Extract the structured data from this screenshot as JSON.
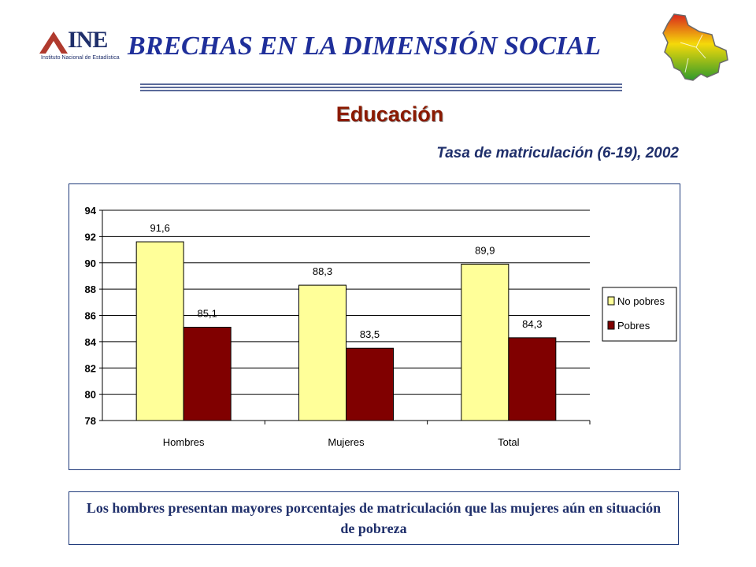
{
  "header": {
    "logo_text": "INE",
    "logo_subtext": "Instituto Nacional de Estadística",
    "title": "BRECHAS EN LA DIMENSIÓN SOCIAL"
  },
  "section": {
    "title": "Educación"
  },
  "chart_data": {
    "type": "bar",
    "title": "Tasa de matriculación (6-19), 2002",
    "xlabel": "",
    "ylabel": "",
    "categories": [
      "Hombres",
      "Mujeres",
      "Total"
    ],
    "series": [
      {
        "name": "No pobres",
        "values": [
          91.6,
          88.3,
          89.9
        ],
        "labels": [
          "91,6",
          "88,3",
          "89,9"
        ],
        "color": "#ffff99"
      },
      {
        "name": "Pobres",
        "values": [
          85.1,
          83.5,
          84.3
        ],
        "labels": [
          "85,1",
          "83,5",
          "84,3"
        ],
        "color": "#800000"
      }
    ],
    "ylim": [
      78,
      94
    ],
    "yticks": [
      78,
      80,
      82,
      84,
      86,
      88,
      90,
      92,
      94
    ],
    "grid": true,
    "legend": "right"
  },
  "note": {
    "text": "Los hombres presentan mayores porcentajes de matriculación que las mujeres aún en situación de pobreza"
  },
  "colors": {
    "title_blue": "#1f2f9a",
    "section_red": "#8b1a00"
  }
}
